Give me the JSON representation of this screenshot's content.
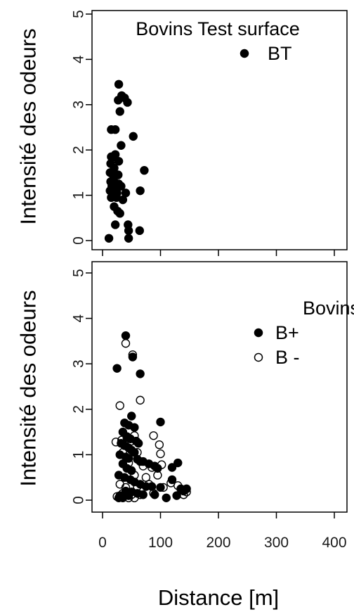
{
  "chart_data": [
    {
      "type": "scatter",
      "title": "Bovins Test surface",
      "ylabel": "Intensité des odeurs",
      "xlabel": "",
      "xlim": [
        0,
        400
      ],
      "ylim": [
        0,
        5
      ],
      "y_ticks": [
        "0",
        "1",
        "2",
        "3",
        "4",
        "5"
      ],
      "x_ticks": [
        "0",
        "100",
        "200",
        "300",
        "400"
      ],
      "x_tick_labels_shown": false,
      "grid": false,
      "legend_position": "top-right",
      "legend_title": "",
      "series": [
        {
          "name": "BT",
          "marker": "filled-circle",
          "color": "#000000",
          "points": [
            [
              28,
              3.45
            ],
            [
              33,
              3.2
            ],
            [
              38,
              3.15
            ],
            [
              43,
              3.05
            ],
            [
              27,
              3.1
            ],
            [
              30,
              2.85
            ],
            [
              53,
              2.3
            ],
            [
              15,
              2.45
            ],
            [
              22,
              2.45
            ],
            [
              32,
              2.1
            ],
            [
              22,
              1.9
            ],
            [
              15,
              1.85
            ],
            [
              20,
              1.85
            ],
            [
              28,
              1.75
            ],
            [
              14,
              1.7
            ],
            [
              20,
              1.6
            ],
            [
              13,
              1.5
            ],
            [
              18,
              1.45
            ],
            [
              27,
              1.45
            ],
            [
              72,
              1.55
            ],
            [
              14,
              1.3
            ],
            [
              20,
              1.3
            ],
            [
              28,
              1.25
            ],
            [
              32,
              1.2
            ],
            [
              16,
              1.2
            ],
            [
              22,
              1.15
            ],
            [
              13,
              1.1
            ],
            [
              25,
              1.05
            ],
            [
              40,
              1.05
            ],
            [
              65,
              1.1
            ],
            [
              15,
              0.95
            ],
            [
              24,
              0.95
            ],
            [
              35,
              0.9
            ],
            [
              20,
              0.75
            ],
            [
              26,
              0.65
            ],
            [
              30,
              0.6
            ],
            [
              44,
              0.35
            ],
            [
              22,
              0.35
            ],
            [
              45,
              0.22
            ],
            [
              64,
              0.22
            ],
            [
              11,
              0.05
            ],
            [
              45,
              0.05
            ]
          ]
        }
      ]
    },
    {
      "type": "scatter",
      "title": "",
      "ylabel": "Intensité des odeurs",
      "xlabel": "Distance [m]",
      "xlim": [
        0,
        400
      ],
      "ylim": [
        0,
        5
      ],
      "y_ticks": [
        "0",
        "1",
        "2",
        "3",
        "4",
        "5"
      ],
      "x_ticks": [
        "0",
        "100",
        "200",
        "300",
        "400"
      ],
      "x_tick_labels_shown": true,
      "grid": false,
      "legend_position": "top-right",
      "legend_title": "Bovins",
      "series": [
        {
          "name": "B+",
          "marker": "filled-circle",
          "color": "#000000",
          "points": [
            [
              40,
              3.62
            ],
            [
              52,
              3.15
            ],
            [
              65,
              2.78
            ],
            [
              25,
              2.9
            ],
            [
              50,
              1.85
            ],
            [
              38,
              1.7
            ],
            [
              45,
              1.65
            ],
            [
              55,
              1.6
            ],
            [
              100,
              1.72
            ],
            [
              35,
              1.5
            ],
            [
              42,
              1.4
            ],
            [
              48,
              1.35
            ],
            [
              58,
              1.3
            ],
            [
              62,
              1.25
            ],
            [
              32,
              1.25
            ],
            [
              38,
              1.2
            ],
            [
              45,
              1.15
            ],
            [
              50,
              1.1
            ],
            [
              55,
              1.05
            ],
            [
              30,
              1.0
            ],
            [
              40,
              0.95
            ],
            [
              45,
              0.92
            ],
            [
              60,
              0.9
            ],
            [
              65,
              0.85
            ],
            [
              70,
              0.85
            ],
            [
              80,
              0.8
            ],
            [
              90,
              0.75
            ],
            [
              95,
              0.7
            ],
            [
              130,
              0.82
            ],
            [
              120,
              0.72
            ],
            [
              35,
              0.8
            ],
            [
              42,
              0.7
            ],
            [
              50,
              0.65
            ],
            [
              28,
              0.55
            ],
            [
              38,
              0.5
            ],
            [
              48,
              0.45
            ],
            [
              55,
              0.4
            ],
            [
              65,
              0.35
            ],
            [
              75,
              0.3
            ],
            [
              85,
              0.3
            ],
            [
              100,
              0.28
            ],
            [
              120,
              0.45
            ],
            [
              135,
              0.25
            ],
            [
              140,
              0.2
            ],
            [
              145,
              0.25
            ],
            [
              40,
              0.2
            ],
            [
              50,
              0.18
            ],
            [
              60,
              0.15
            ],
            [
              70,
              0.12
            ],
            [
              90,
              0.12
            ],
            [
              30,
              0.1
            ],
            [
              45,
              0.1
            ],
            [
              110,
              0.05
            ],
            [
              28,
              0.05
            ],
            [
              35,
              0.05
            ],
            [
              128,
              0.1
            ]
          ]
        },
        {
          "name": "B -",
          "marker": "open-circle",
          "color": "#000000",
          "points": [
            [
              40,
              3.45
            ],
            [
              52,
              3.2
            ],
            [
              65,
              2.2
            ],
            [
              30,
              2.08
            ],
            [
              55,
              1.42
            ],
            [
              88,
              1.42
            ],
            [
              23,
              1.28
            ],
            [
              33,
              1.32
            ],
            [
              42,
              1.38
            ],
            [
              50,
              1.3
            ],
            [
              98,
              1.22
            ],
            [
              35,
              1.05
            ],
            [
              60,
              1.05
            ],
            [
              100,
              1.02
            ],
            [
              45,
              0.82
            ],
            [
              70,
              0.75
            ],
            [
              85,
              0.72
            ],
            [
              102,
              0.78
            ],
            [
              55,
              0.55
            ],
            [
              75,
              0.5
            ],
            [
              95,
              0.55
            ],
            [
              118,
              0.38
            ],
            [
              30,
              0.35
            ],
            [
              40,
              0.28
            ],
            [
              60,
              0.3
            ],
            [
              80,
              0.35
            ],
            [
              105,
              0.28
            ],
            [
              130,
              0.32
            ],
            [
              145,
              0.18
            ],
            [
              35,
              0.15
            ],
            [
              50,
              0.12
            ],
            [
              65,
              0.12
            ],
            [
              88,
              0.15
            ],
            [
              140,
              0.12
            ],
            [
              25,
              0.08
            ],
            [
              45,
              0.05
            ],
            [
              55,
              0.05
            ]
          ]
        }
      ]
    }
  ]
}
